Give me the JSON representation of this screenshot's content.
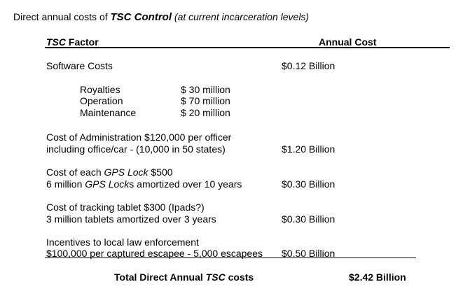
{
  "title": {
    "prefix": "Direct annual costs of ",
    "emphasis": "TSC Control",
    "suffix": " (at current incarceration levels)"
  },
  "header": {
    "factor_tsc": "TSC",
    "factor_rest": " Factor",
    "cost": "Annual Cost"
  },
  "software": {
    "label": "Software Costs",
    "cost": "$0.12 Billion",
    "items": [
      {
        "label": "Royalties",
        "value": "$  30 million"
      },
      {
        "label": "Operation",
        "value": "$  70 million"
      },
      {
        "label": "Maintenance",
        "value": "$  20 million"
      }
    ]
  },
  "administration": {
    "line1": "Cost of Administration $120,000 per officer",
    "line2": "including office/car  - (10,000 in 50 states)",
    "cost": "$1.20 Billion"
  },
  "gps": {
    "line1_a": "Cost of each ",
    "line1_b": "GPS Lock",
    "line1_c": " $500",
    "line2_a": "6 million ",
    "line2_b": "GPS Lock",
    "line2_c": "s amortized over 10 years",
    "cost": "$0.30 Billion"
  },
  "tablet": {
    "line1": "Cost of tracking tablet $300 (Ipads?)",
    "line2": "3 million tablets amortized over 3 years",
    "cost": "$0.30 Billion"
  },
  "incentives": {
    "line1": "Incentives to local law enforcement",
    "line2": "$100,000 per captured escapee - 5,000 escapees",
    "cost": "$0.50 Billion"
  },
  "total": {
    "label_a": "Total Direct Annual ",
    "label_b": "TSC",
    "label_c": " costs",
    "value": "$2.42 Billion"
  }
}
